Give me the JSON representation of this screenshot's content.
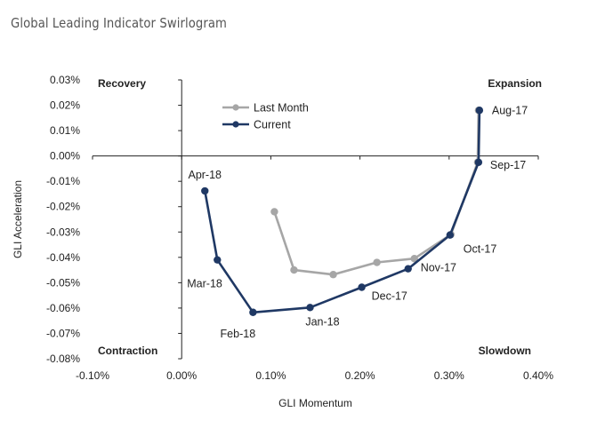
{
  "title": "Global Leading Indicator Swirlogram",
  "chart_data": {
    "type": "line",
    "title": "Global Leading Indicator Swirlogram",
    "xlabel": "GLI Momentum",
    "ylabel": "GLI Acceleration",
    "xlim": [
      -0.1,
      0.4
    ],
    "ylim": [
      -0.08,
      0.03
    ],
    "x_ticks": [
      -0.1,
      0.0,
      0.1,
      0.2,
      0.3,
      0.4
    ],
    "x_tick_labels": [
      "-0.10%",
      "0.00%",
      "0.10%",
      "0.20%",
      "0.30%",
      "0.40%"
    ],
    "y_ticks": [
      0.03,
      0.02,
      0.01,
      0.0,
      -0.01,
      -0.02,
      -0.03,
      -0.04,
      -0.05,
      -0.06,
      -0.07,
      -0.08
    ],
    "y_tick_labels": [
      "0.03%",
      "0.02%",
      "0.01%",
      "0.00%",
      "-0.01%",
      "-0.02%",
      "-0.03%",
      "-0.04%",
      "-0.05%",
      "-0.06%",
      "-0.07%",
      "-0.08%"
    ],
    "quadrants": {
      "top_left": "Recovery",
      "top_right": "Expansion",
      "bottom_left": "Contraction",
      "bottom_right": "Slowdown"
    },
    "legend": [
      "Last Month",
      "Current"
    ],
    "series": [
      {
        "name": "Last Month",
        "color": "#a6a6a6",
        "points": [
          {
            "x": 0.333,
            "y": 0.018
          },
          {
            "x": 0.332,
            "y": -0.0025
          },
          {
            "x": 0.302,
            "y": -0.031
          },
          {
            "x": 0.261,
            "y": -0.0405
          },
          {
            "x": 0.219,
            "y": -0.042
          },
          {
            "x": 0.17,
            "y": -0.0468
          },
          {
            "x": 0.126,
            "y": -0.045
          },
          {
            "x": 0.104,
            "y": -0.022
          }
        ]
      },
      {
        "name": "Current",
        "color": "#1f3864",
        "points": [
          {
            "x": 0.334,
            "y": 0.018,
            "label": "Aug-17"
          },
          {
            "x": 0.333,
            "y": -0.0025,
            "label": "Sep-17"
          },
          {
            "x": 0.301,
            "y": -0.0312,
            "label": "Oct-17"
          },
          {
            "x": 0.254,
            "y": -0.0445,
            "label": "Nov-17"
          },
          {
            "x": 0.202,
            "y": -0.0518,
            "label": "Dec-17"
          },
          {
            "x": 0.144,
            "y": -0.0598,
            "label": "Jan-18"
          },
          {
            "x": 0.08,
            "y": -0.0617,
            "label": "Feb-18"
          },
          {
            "x": 0.04,
            "y": -0.041,
            "label": "Mar-18"
          },
          {
            "x": 0.026,
            "y": -0.0138,
            "label": "Apr-18"
          }
        ]
      }
    ]
  }
}
